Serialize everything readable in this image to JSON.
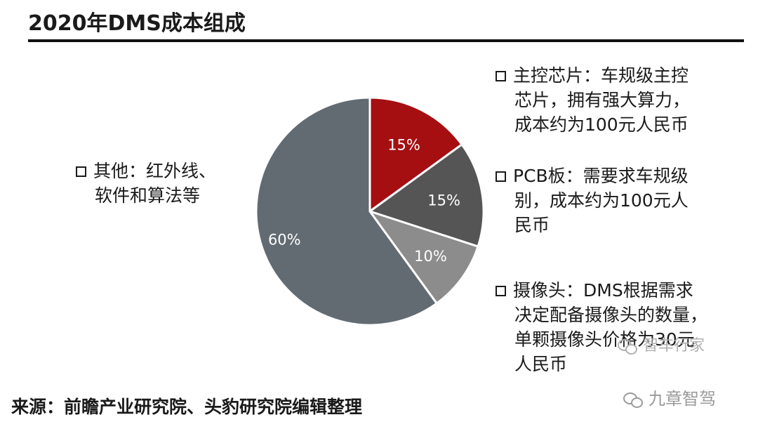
{
  "title": "2020年DMS成本组成",
  "chart_data": {
    "type": "pie",
    "slices": [
      {
        "label": "15%",
        "value": 15,
        "color": "#a50f12",
        "category": "主控芯片"
      },
      {
        "label": "15%",
        "value": 15,
        "color": "#555555",
        "category": "PCB板"
      },
      {
        "label": "10%",
        "value": 10,
        "color": "#8c8c8c",
        "category": "摄像头"
      },
      {
        "label": "60%",
        "value": 60,
        "color": "#636b72",
        "category": "其他"
      }
    ]
  },
  "notes": {
    "chip": [
      "主控芯片：车规级主控",
      "芯片，拥有强大算力，",
      "成本约为100元人民币"
    ],
    "pcb": [
      "PCB板：需要求车规级",
      "别，成本约为100元人",
      "民币"
    ],
    "camera": [
      "摄像头：DMS根据需求",
      "决定配备摄像头的数量，",
      "单颗摄像头价格为30元",
      "人民币"
    ],
    "other": [
      "其他：红外线、",
      "软件和算法等"
    ]
  },
  "source": "来源：前瞻产业研究院、头豹研究院编辑整理",
  "watermarks": {
    "first": "智车行家",
    "second": "九章智驾"
  }
}
